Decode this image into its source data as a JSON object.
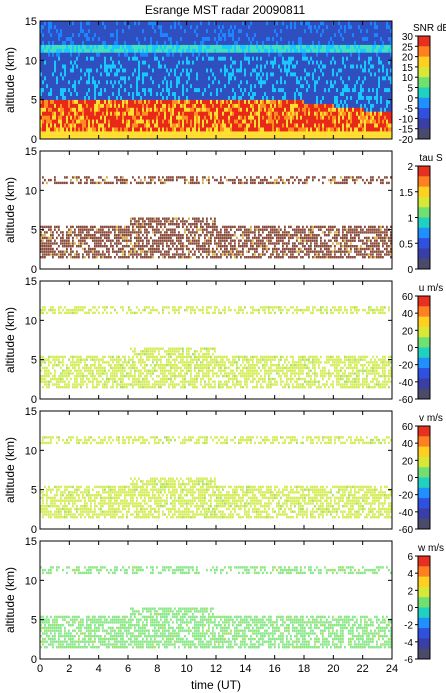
{
  "chart_data": {
    "type": "heatmap",
    "title": "Esrange MST radar 20090811",
    "xlabel": "time (UT)",
    "xlim": [
      0,
      24
    ],
    "xticks": [
      "0",
      "2",
      "4",
      "6",
      "8",
      "10",
      "12",
      "14",
      "16",
      "18",
      "20",
      "22",
      "24"
    ],
    "panels": [
      {
        "id": "snr",
        "ylabel": "altitude (km)",
        "ylim": [
          0,
          15
        ],
        "yticks": [
          "0",
          "5",
          "10",
          "15"
        ],
        "colorbar": {
          "label": "SNR dB",
          "range": [
            -20,
            30
          ],
          "ticks": [
            "30",
            "25",
            "20",
            "15",
            "10",
            "5",
            "0",
            "-5",
            "-10",
            "-15",
            "-20"
          ]
        }
      },
      {
        "id": "tau",
        "ylabel": "altitude (km)",
        "ylim": [
          0,
          15
        ],
        "yticks": [
          "0",
          "5",
          "10",
          "15"
        ],
        "colorbar": {
          "label": "tau S",
          "range": [
            0,
            2
          ],
          "ticks": [
            "2",
            "1.5",
            "1",
            "0.5",
            "0"
          ]
        }
      },
      {
        "id": "u",
        "ylabel": "altitude (km)",
        "ylim": [
          0,
          15
        ],
        "yticks": [
          "0",
          "5",
          "10",
          "15"
        ],
        "colorbar": {
          "label": "u m/s",
          "range": [
            -60,
            60
          ],
          "ticks": [
            "60",
            "40",
            "20",
            "0",
            "-20",
            "-40",
            "-60"
          ]
        }
      },
      {
        "id": "v",
        "ylabel": "altitude (km)",
        "ylim": [
          0,
          15
        ],
        "yticks": [
          "0",
          "5",
          "10",
          "15"
        ],
        "colorbar": {
          "label": "v m/s",
          "range": [
            -60,
            60
          ],
          "ticks": [
            "60",
            "40",
            "20",
            "0",
            "-20",
            "-40",
            "-60"
          ]
        }
      },
      {
        "id": "w",
        "ylabel": "altitude (km)",
        "ylim": [
          0,
          15
        ],
        "yticks": [
          "0",
          "5",
          "10",
          "15"
        ],
        "colorbar": {
          "label": "w m/s",
          "range": [
            -6,
            6
          ],
          "ticks": [
            "6",
            "4",
            "2",
            "0",
            "-2",
            "-4",
            "-6"
          ]
        }
      }
    ]
  }
}
